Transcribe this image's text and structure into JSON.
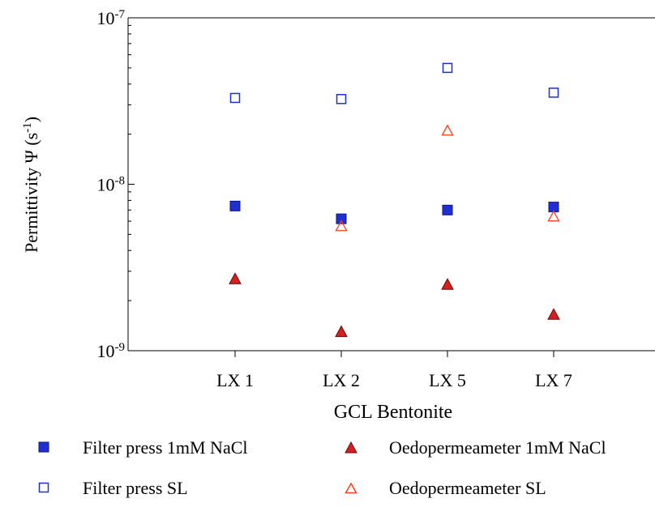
{
  "chart_data": {
    "type": "scatter",
    "yscale": "log",
    "ylim": [
      1e-09,
      1e-07
    ],
    "yticks": [
      {
        "value": 1e-07,
        "base": "10",
        "exp": "-7"
      },
      {
        "value": 1e-08,
        "base": "10",
        "exp": "-8"
      },
      {
        "value": 1e-09,
        "base": "10",
        "exp": "-9"
      }
    ],
    "categories": [
      "LX 1",
      "LX 2",
      "LX 5",
      "LX 7"
    ],
    "xlabel": "GCL Bentonite",
    "ylabel": {
      "main": "Permittivity Ψ  (s",
      "sup": "-1",
      "end": ")"
    },
    "grid": false,
    "legend_position": "bottom",
    "series": [
      {
        "name": "Filter press 1mM NaCl",
        "marker": "filled-square",
        "color": "#1f2fd6",
        "values": [
          7.4e-09,
          6.2e-09,
          7e-09,
          7.3e-09
        ]
      },
      {
        "name": "Oedopermeameter 1mM NaCl",
        "marker": "filled-triangle",
        "color": "#d61f1f",
        "values": [
          2.7e-09,
          1.3e-09,
          2.5e-09,
          1.65e-09
        ]
      },
      {
        "name": "Filter press SL",
        "marker": "open-square",
        "color": "#1f2fd6",
        "values": [
          3.3e-08,
          3.25e-08,
          5e-08,
          3.55e-08
        ]
      },
      {
        "name": "Oedopermeameter SL",
        "marker": "open-triangle",
        "color": "#ff3b1f",
        "values": [
          null,
          5.6e-09,
          2.1e-08,
          6.4e-09
        ]
      }
    ]
  }
}
